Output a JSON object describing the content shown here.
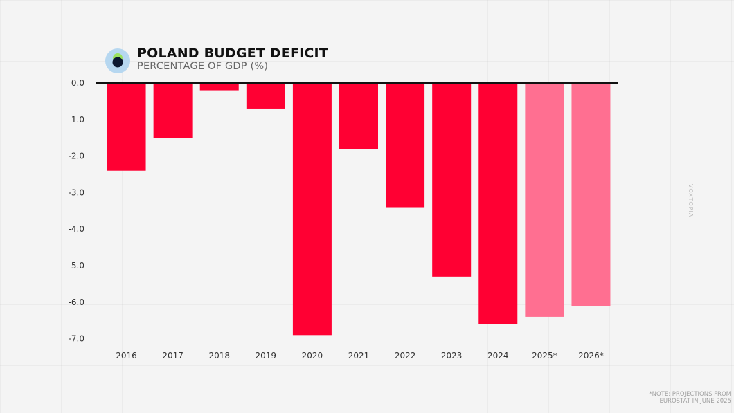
{
  "header": {
    "title": "POLAND BUDGET DEFICIT",
    "subtitle": "PERCENTAGE OF GDP (%)"
  },
  "logo": {
    "icon": "eye-logo-icon",
    "colors": [
      "#2e7d32",
      "#b6d7f0",
      "#0b1730",
      "#9be15d"
    ]
  },
  "watermark": "VOXTOPIA",
  "note": "*NOTE: PROJECTIONS FROM EUROSTAT IN JUNE 2025",
  "colors": {
    "actual": "#ff0033",
    "projected": "#ff6f91",
    "axis": "#111111"
  },
  "chart_data": {
    "type": "bar",
    "title": "POLAND BUDGET DEFICIT",
    "subtitle": "PERCENTAGE OF GDP (%)",
    "categories": [
      "2016",
      "2017",
      "2018",
      "2019",
      "2020",
      "2021",
      "2022",
      "2023",
      "2024",
      "2025*",
      "2026*"
    ],
    "values": [
      -2.4,
      -1.5,
      -0.2,
      -0.7,
      -6.9,
      -1.8,
      -3.4,
      -5.3,
      -6.6,
      -6.4,
      -6.1
    ],
    "projected": [
      false,
      false,
      false,
      false,
      false,
      false,
      false,
      false,
      false,
      true,
      true
    ],
    "yticks": [
      "0.0",
      "-1.0",
      "-2.0",
      "-3.0",
      "-4.0",
      "-5.0",
      "-6.0",
      "-7.0"
    ],
    "ytick_values": [
      0,
      -1,
      -2,
      -3,
      -4,
      -5,
      -6,
      -7
    ],
    "ylim": [
      -7,
      0
    ],
    "xlabel": "",
    "ylabel": "",
    "grid": false,
    "legend": "none"
  }
}
